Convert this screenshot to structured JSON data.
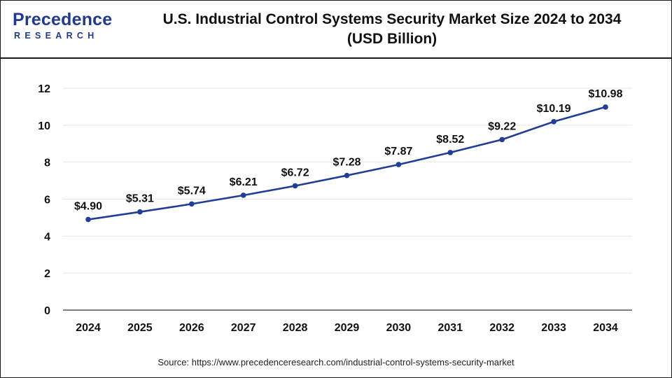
{
  "header": {
    "logo_top": "Precedence",
    "logo_bottom": "RESEARCH",
    "title_line1": "U.S. Industrial Control Systems Security Market Size 2024 to 2034",
    "title_line2": "(USD Billion)"
  },
  "colors": {
    "brand": "#1f3a8f",
    "line": "#1f3d99",
    "marker": "#1f3d99",
    "grid": "#e6e6e6",
    "axis": "#333333"
  },
  "chart_data": {
    "type": "line",
    "title": "U.S. Industrial Control Systems Security Market Size 2024 to 2034 (USD Billion)",
    "xlabel": "",
    "ylabel": "",
    "categories": [
      "2024",
      "2025",
      "2026",
      "2027",
      "2028",
      "2029",
      "2030",
      "2031",
      "2032",
      "2033",
      "2034"
    ],
    "series": [
      {
        "name": "Market Size (USD Billion)",
        "values": [
          4.9,
          5.31,
          5.74,
          6.21,
          6.72,
          7.28,
          7.87,
          8.52,
          9.22,
          10.19,
          10.98
        ],
        "labels": [
          "$4.90",
          "$5.31",
          "$5.74",
          "$6.21",
          "$6.72",
          "$7.28",
          "$7.87",
          "$8.52",
          "$9.22",
          "$10.19",
          "$10.98"
        ]
      }
    ],
    "ylim": [
      0,
      12
    ],
    "yticks": [
      "0",
      "2",
      "4",
      "6",
      "8",
      "10",
      "12"
    ],
    "grid": true
  },
  "footer": {
    "source": "Source: https://www.precedenceresearch.com/industrial-control-systems-security-market"
  }
}
